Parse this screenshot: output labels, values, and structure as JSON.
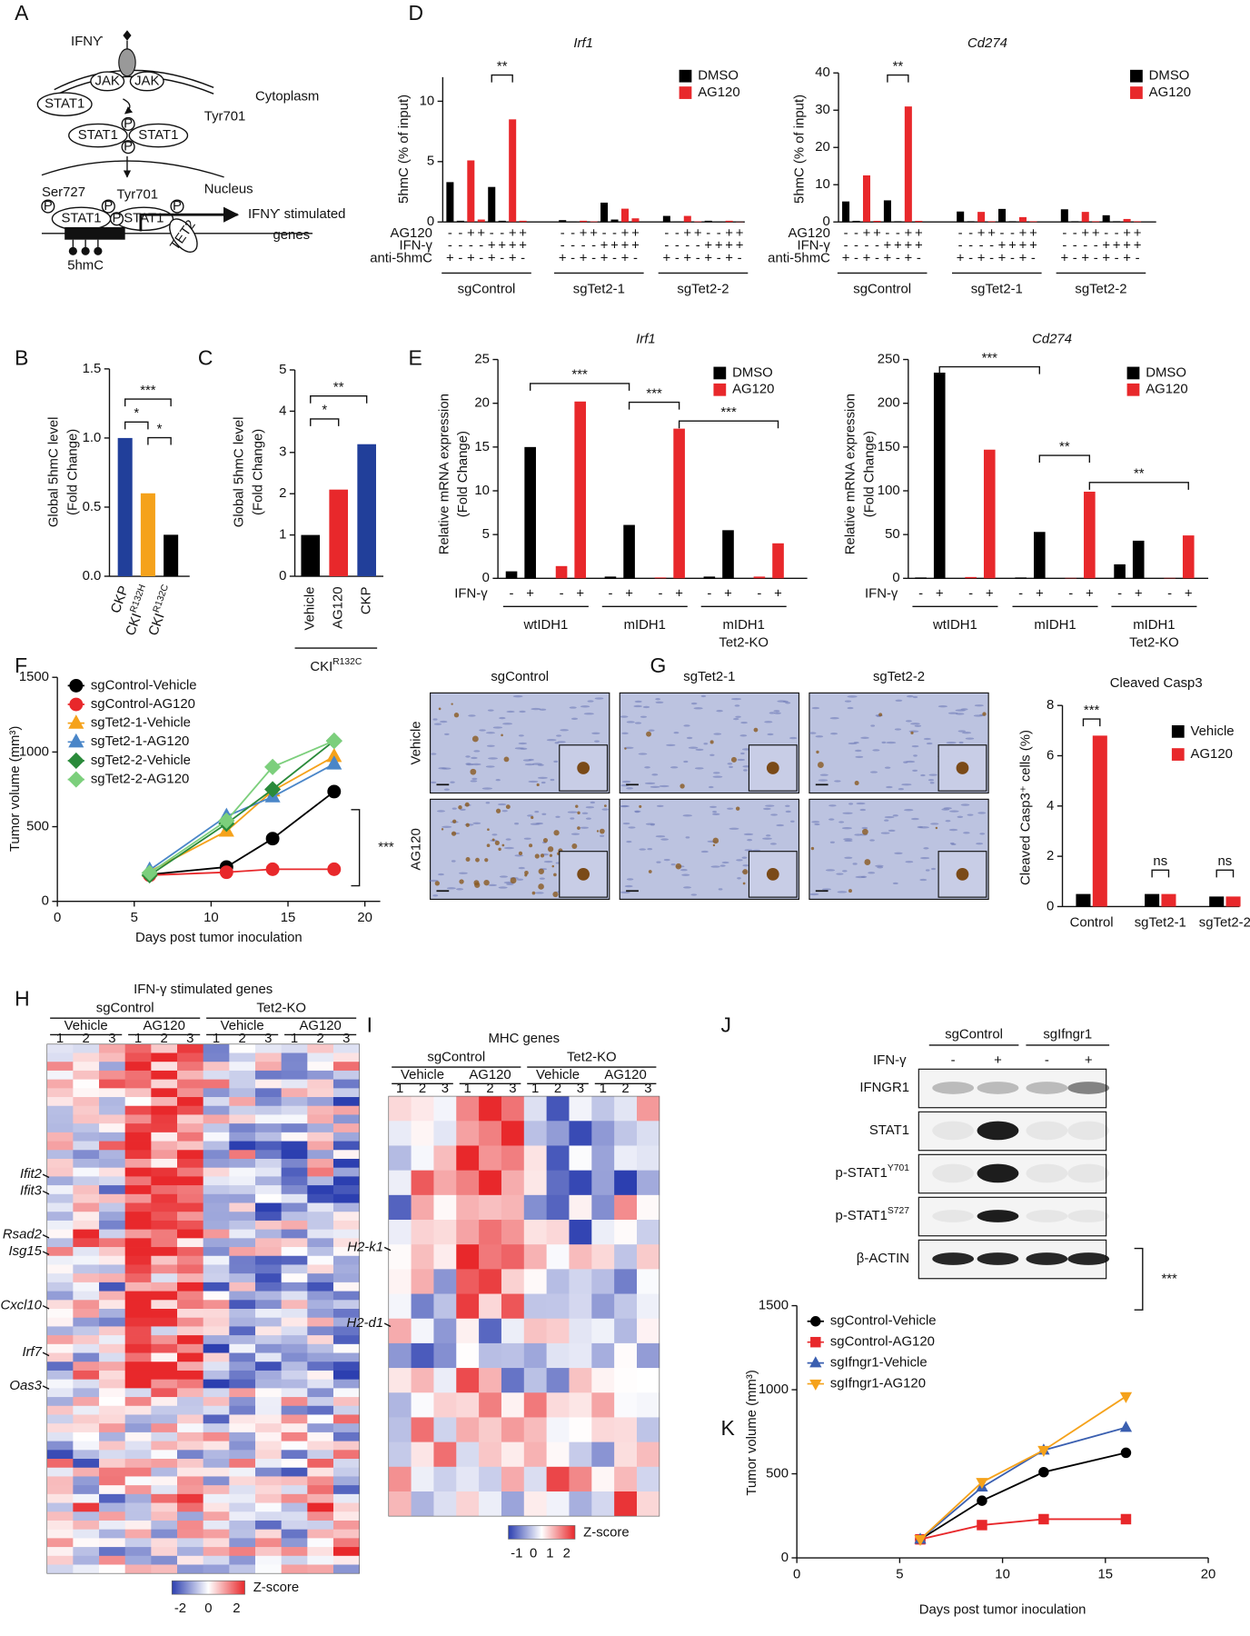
{
  "panel_labels": [
    "A",
    "B",
    "C",
    "D",
    "E",
    "F",
    "G",
    "H",
    "I",
    "J",
    "K"
  ],
  "diagram": {
    "ligand": "IFNϒ",
    "jak": [
      "JAK",
      "JAK"
    ],
    "stat_top": "STAT1",
    "tyr_top": "Tyr701",
    "cytoplasm": "Cytoplasm",
    "dimer": [
      "STAT1",
      "STAT1"
    ],
    "p": "P",
    "ser": "Ser727",
    "tyr": "Tyr701",
    "nucleus": "Nucleus",
    "dimer_nuc": [
      "STAT1",
      "STAT1"
    ],
    "tet2": "TET2",
    "genes": [
      "IFNϒ stimulated",
      "genes"
    ],
    "mark": "5hmC"
  },
  "histology": {
    "columns": [
      "sgControl",
      "sgTet2-1",
      "sgTet2-2"
    ],
    "rows": [
      "Vehicle",
      "AG120"
    ]
  },
  "heatmaps": {
    "h": {
      "title": "IFN-γ stimulated genes",
      "groups": [
        "sgControl",
        "Tet2-KO"
      ],
      "treatments": [
        "Vehicle",
        "AG120",
        "Vehicle",
        "AG120"
      ],
      "replicates": [
        "1",
        "2",
        "3"
      ],
      "genes": [
        "Ifit2",
        "Ifit3",
        "Rsad2",
        "Isg15",
        "Cxcl10",
        "Irf7",
        "Oas3"
      ],
      "colorbar_ticks": [
        "-2",
        "0",
        "2"
      ],
      "colorbar_label": "Z-score"
    },
    "i": {
      "title": "MHC genes",
      "groups": [
        "sgControl",
        "Tet2-KO"
      ],
      "treatments": [
        "Vehicle",
        "AG120",
        "Vehicle",
        "AG120"
      ],
      "replicates": [
        "1",
        "2",
        "3"
      ],
      "genes": [
        "H2-k1",
        "H2-d1"
      ],
      "colorbar_ticks": [
        "-1",
        "0",
        "1",
        "2"
      ],
      "colorbar_label": "Z-score"
    }
  },
  "blot": {
    "groups": [
      "sgControl",
      "sgIfngr1"
    ],
    "treatment": "IFN-γ",
    "signs": [
      "-",
      "+",
      "-",
      "+"
    ],
    "rows": [
      {
        "label": "IFNGR1"
      },
      {
        "label": "STAT1"
      },
      {
        "label": "p-STAT1",
        "sup": "Y701"
      },
      {
        "label": "p-STAT1",
        "sup": "S727"
      },
      {
        "label": "β-ACTIN"
      }
    ]
  },
  "chart_data": [
    {
      "type": "bar",
      "title": "Irf1",
      "y_label": "5hmC (% of input)",
      "groups": [
        [
          "sgControl"
        ],
        [
          "sgTet2-1"
        ],
        [
          "sgTet2-2"
        ]
      ],
      "condition_rows": [
        {
          "label": "AG120",
          "signs": [
            "-",
            "-",
            "+",
            "+",
            "-",
            "-",
            "+",
            "+"
          ]
        },
        {
          "label": "IFN-γ",
          "signs": [
            "-",
            "-",
            "-",
            "-",
            "+",
            "+",
            "+",
            "+"
          ]
        },
        {
          "label": "anti-5hmC",
          "signs": [
            "+",
            "-",
            "+",
            "-",
            "+",
            "-",
            "+",
            "-"
          ]
        }
      ],
      "series": [
        {
          "name": "DMSO",
          "color": "#000000",
          "values": [
            3.3,
            0.1,
            null,
            null,
            2.9,
            0.1,
            null,
            null,
            0.15,
            0.05,
            null,
            null,
            1.6,
            0.2,
            null,
            null,
            0.5,
            0.05,
            null,
            null,
            0.1,
            0.02,
            null,
            null
          ]
        },
        {
          "name": "AG120",
          "color": "#e8282b",
          "values": [
            null,
            null,
            5.1,
            0.2,
            null,
            null,
            8.5,
            0.1,
            null,
            null,
            0.1,
            0.05,
            null,
            null,
            1.1,
            0.3,
            null,
            null,
            0.5,
            0.05,
            null,
            null,
            0.1,
            0.02
          ]
        }
      ],
      "ylim": [
        0,
        12
      ],
      "yticks": [
        0,
        5,
        10
      ],
      "annotations": [
        "**"
      ]
    },
    {
      "type": "bar",
      "title": "Cd274",
      "y_label": "5hmC (% of input)",
      "groups": [
        [
          "sgControl"
        ],
        [
          "sgTet2-1"
        ],
        [
          "sgTet2-2"
        ]
      ],
      "condition_rows": [
        {
          "label": "AG120",
          "signs": [
            "-",
            "-",
            "+",
            "+",
            "-",
            "-",
            "+",
            "+"
          ]
        },
        {
          "label": "IFN-γ",
          "signs": [
            "-",
            "-",
            "-",
            "-",
            "+",
            "+",
            "+",
            "+"
          ]
        },
        {
          "label": "anti-5hmC",
          "signs": [
            "+",
            "-",
            "+",
            "-",
            "+",
            "-",
            "+",
            "-"
          ]
        }
      ],
      "series": [
        {
          "name": "DMSO",
          "color": "#000000",
          "values": [
            5.5,
            0.3,
            null,
            null,
            5.8,
            0.2,
            null,
            null,
            2.8,
            0.2,
            null,
            null,
            3.5,
            0.2,
            null,
            null,
            3.4,
            0.2,
            null,
            null,
            1.8,
            0.2,
            null,
            null
          ]
        },
        {
          "name": "AG120",
          "color": "#e8282b",
          "values": [
            null,
            null,
            12.5,
            0.3,
            null,
            null,
            31,
            0.3,
            null,
            null,
            2.7,
            0.2,
            null,
            null,
            1.3,
            0.2,
            null,
            null,
            2.7,
            0.2,
            null,
            null,
            0.8,
            0.2
          ]
        }
      ],
      "ylim": [
        0,
        40
      ],
      "yticks": [
        0,
        10,
        20,
        30,
        40
      ],
      "annotations": [
        "**"
      ]
    },
    {
      "type": "bar",
      "y_label": [
        "Global 5hmC level",
        "(Fold Change)"
      ],
      "categories": [
        "CKP",
        "CKI",
        "CKI"
      ],
      "category_superscripts": {
        "1": "R132H",
        "2": "R132C"
      },
      "values": [
        1.0,
        0.6,
        0.3
      ],
      "colors": [
        "#213f9a",
        "#f5a21b",
        "#000000"
      ],
      "ylim": [
        0,
        1.5
      ],
      "yticks": [
        {
          "value": 0,
          "label": "0.0"
        },
        0.5,
        {
          "value": 1,
          "label": "1.0"
        },
        1.5
      ],
      "annotations": [
        "***",
        "*",
        "*"
      ]
    },
    {
      "type": "bar",
      "y_label": [
        "Global 5hmC level",
        "(Fold Change)"
      ],
      "categories": [
        "Vehicle",
        "AG120",
        "CKP"
      ],
      "group_label": {
        "text": "CKI",
        "sup": "R132C"
      },
      "values": [
        1.0,
        2.1,
        3.2
      ],
      "colors": [
        "#000000",
        "#e8282b",
        "#213f9a"
      ],
      "ylim": [
        0,
        5
      ],
      "yticks": [
        0,
        1,
        2,
        3,
        4,
        5
      ],
      "annotations": [
        "**",
        "*"
      ]
    },
    {
      "type": "bar",
      "title": "Irf1",
      "y_label": [
        "Relative mRNA expression",
        "(Fold Change)"
      ],
      "groups": [
        [
          "wtIDH1"
        ],
        [
          "mIDH1"
        ],
        [
          "mIDH1",
          "Tet2-KO"
        ]
      ],
      "group_colors": [
        "#1a6fc4",
        "#000000",
        "#000000"
      ],
      "condition_rows": [
        {
          "label": "IFN-γ",
          "signs": [
            "-",
            "+",
            "-",
            "+"
          ]
        }
      ],
      "series": [
        {
          "name": "DMSO",
          "color": "#000000",
          "values": [
            0.8,
            15,
            null,
            null,
            0.2,
            6.1,
            null,
            null,
            0.2,
            5.5,
            null,
            null
          ]
        },
        {
          "name": "AG120",
          "color": "#e8282b",
          "values": [
            null,
            null,
            1.4,
            20.2,
            null,
            null,
            0.1,
            17.1,
            null,
            null,
            0.2,
            4.0
          ]
        }
      ],
      "ylim": [
        0,
        25
      ],
      "yticks": [
        0,
        5,
        10,
        15,
        20,
        25
      ],
      "annotations": [
        "***",
        "***",
        "***"
      ]
    },
    {
      "type": "bar",
      "title": "Cd274",
      "y_label": [
        "Relative mRNA expression",
        "(Fold Change)"
      ],
      "groups": [
        [
          "wtIDH1"
        ],
        [
          "mIDH1"
        ],
        [
          "mIDH1",
          "Tet2-KO"
        ]
      ],
      "group_colors": [
        "#1a6fc4",
        "#000000",
        "#000000"
      ],
      "condition_rows": [
        {
          "label": "IFN-γ",
          "signs": [
            "-",
            "+",
            "-",
            "+"
          ]
        }
      ],
      "series": [
        {
          "name": "DMSO",
          "color": "#000000",
          "values": [
            1,
            235,
            null,
            null,
            1,
            53,
            null,
            null,
            16,
            43,
            null,
            null
          ]
        },
        {
          "name": "AG120",
          "color": "#e8282b",
          "values": [
            null,
            null,
            1.5,
            147,
            null,
            null,
            0.5,
            99,
            null,
            null,
            0.5,
            49
          ]
        }
      ],
      "ylim": [
        0,
        250
      ],
      "yticks": [
        0,
        50,
        100,
        150,
        200,
        250
      ],
      "annotations": [
        "***",
        "**",
        "**"
      ]
    },
    {
      "type": "line",
      "x_label": "Days post tumor inoculation",
      "y_label": "Tumor volume (mm³)",
      "x": [
        6,
        11,
        14,
        18
      ],
      "xlim": [
        0,
        21
      ],
      "xticks": [
        0,
        5,
        10,
        15,
        20
      ],
      "ylim": [
        0,
        1500
      ],
      "yticks": [
        0,
        500,
        1000,
        1500
      ],
      "series": [
        {
          "name": "sgControl-Vehicle",
          "color": "#000000",
          "marker": "circle",
          "values": [
            180,
            230,
            420,
            735
          ]
        },
        {
          "name": "sgControl-AG120",
          "color": "#e8282b",
          "marker": "circle",
          "values": [
            175,
            195,
            215,
            215
          ]
        },
        {
          "name": "sgTet2-1-Vehicle",
          "color": "#f5a21b",
          "marker": "triangle",
          "values": [
            200,
            470,
            740,
            970
          ]
        },
        {
          "name": "sgTet2-1-AG120",
          "color": "#4a86c8",
          "marker": "triangle",
          "values": [
            210,
            570,
            700,
            920
          ]
        },
        {
          "name": "sgTet2-2-Vehicle",
          "color": "#2a8a3a",
          "marker": "diamond",
          "values": [
            175,
            520,
            750,
            1075
          ]
        },
        {
          "name": "sgTet2-2-AG120",
          "color": "#7ccf7c",
          "marker": "diamond",
          "values": [
            190,
            540,
            900,
            1075
          ]
        }
      ],
      "annotations": [
        "***"
      ]
    },
    {
      "type": "bar",
      "title": "Cleaved Casp3",
      "y_label": "Cleaved Casp3⁺ cells (%)",
      "categories": [
        "Control",
        "sgTet2-1",
        "sgTet2-2"
      ],
      "series": [
        {
          "name": "Vehicle",
          "color": "#000000",
          "values": [
            0.5,
            0.5,
            0.4
          ]
        },
        {
          "name": "AG120",
          "color": "#e8282b",
          "values": [
            6.8,
            0.5,
            0.4
          ]
        }
      ],
      "ylim": [
        0,
        8
      ],
      "yticks": [
        0,
        2,
        4,
        6,
        8
      ],
      "annotations": [
        "***",
        "ns",
        "ns"
      ]
    },
    {
      "type": "line",
      "x_label": "Days post tumor inoculation",
      "y_label": "Tumor volume (mm³)",
      "x": [
        6,
        9,
        12,
        16
      ],
      "xlim": [
        0,
        20
      ],
      "xticks": [
        0,
        5,
        10,
        15,
        20
      ],
      "ylim": [
        0,
        1500
      ],
      "yticks": [
        0,
        500,
        1000,
        1500
      ],
      "series": [
        {
          "name": "sgControl-Vehicle",
          "color": "#000000",
          "marker": "circle",
          "values": [
            110,
            340,
            510,
            625
          ]
        },
        {
          "name": "sgControl-AG120",
          "color": "#e8282b",
          "marker": "square",
          "values": [
            110,
            195,
            230,
            230
          ]
        },
        {
          "name": "sgIfngr1-Vehicle",
          "color": "#3a5fb0",
          "marker": "triangle",
          "values": [
            110,
            420,
            640,
            775
          ]
        },
        {
          "name": "sgIfngr1-AG120",
          "color": "#f5a21b",
          "marker": "triangle-down",
          "values": [
            110,
            450,
            640,
            960
          ]
        }
      ],
      "annotations": [
        "***"
      ]
    }
  ]
}
